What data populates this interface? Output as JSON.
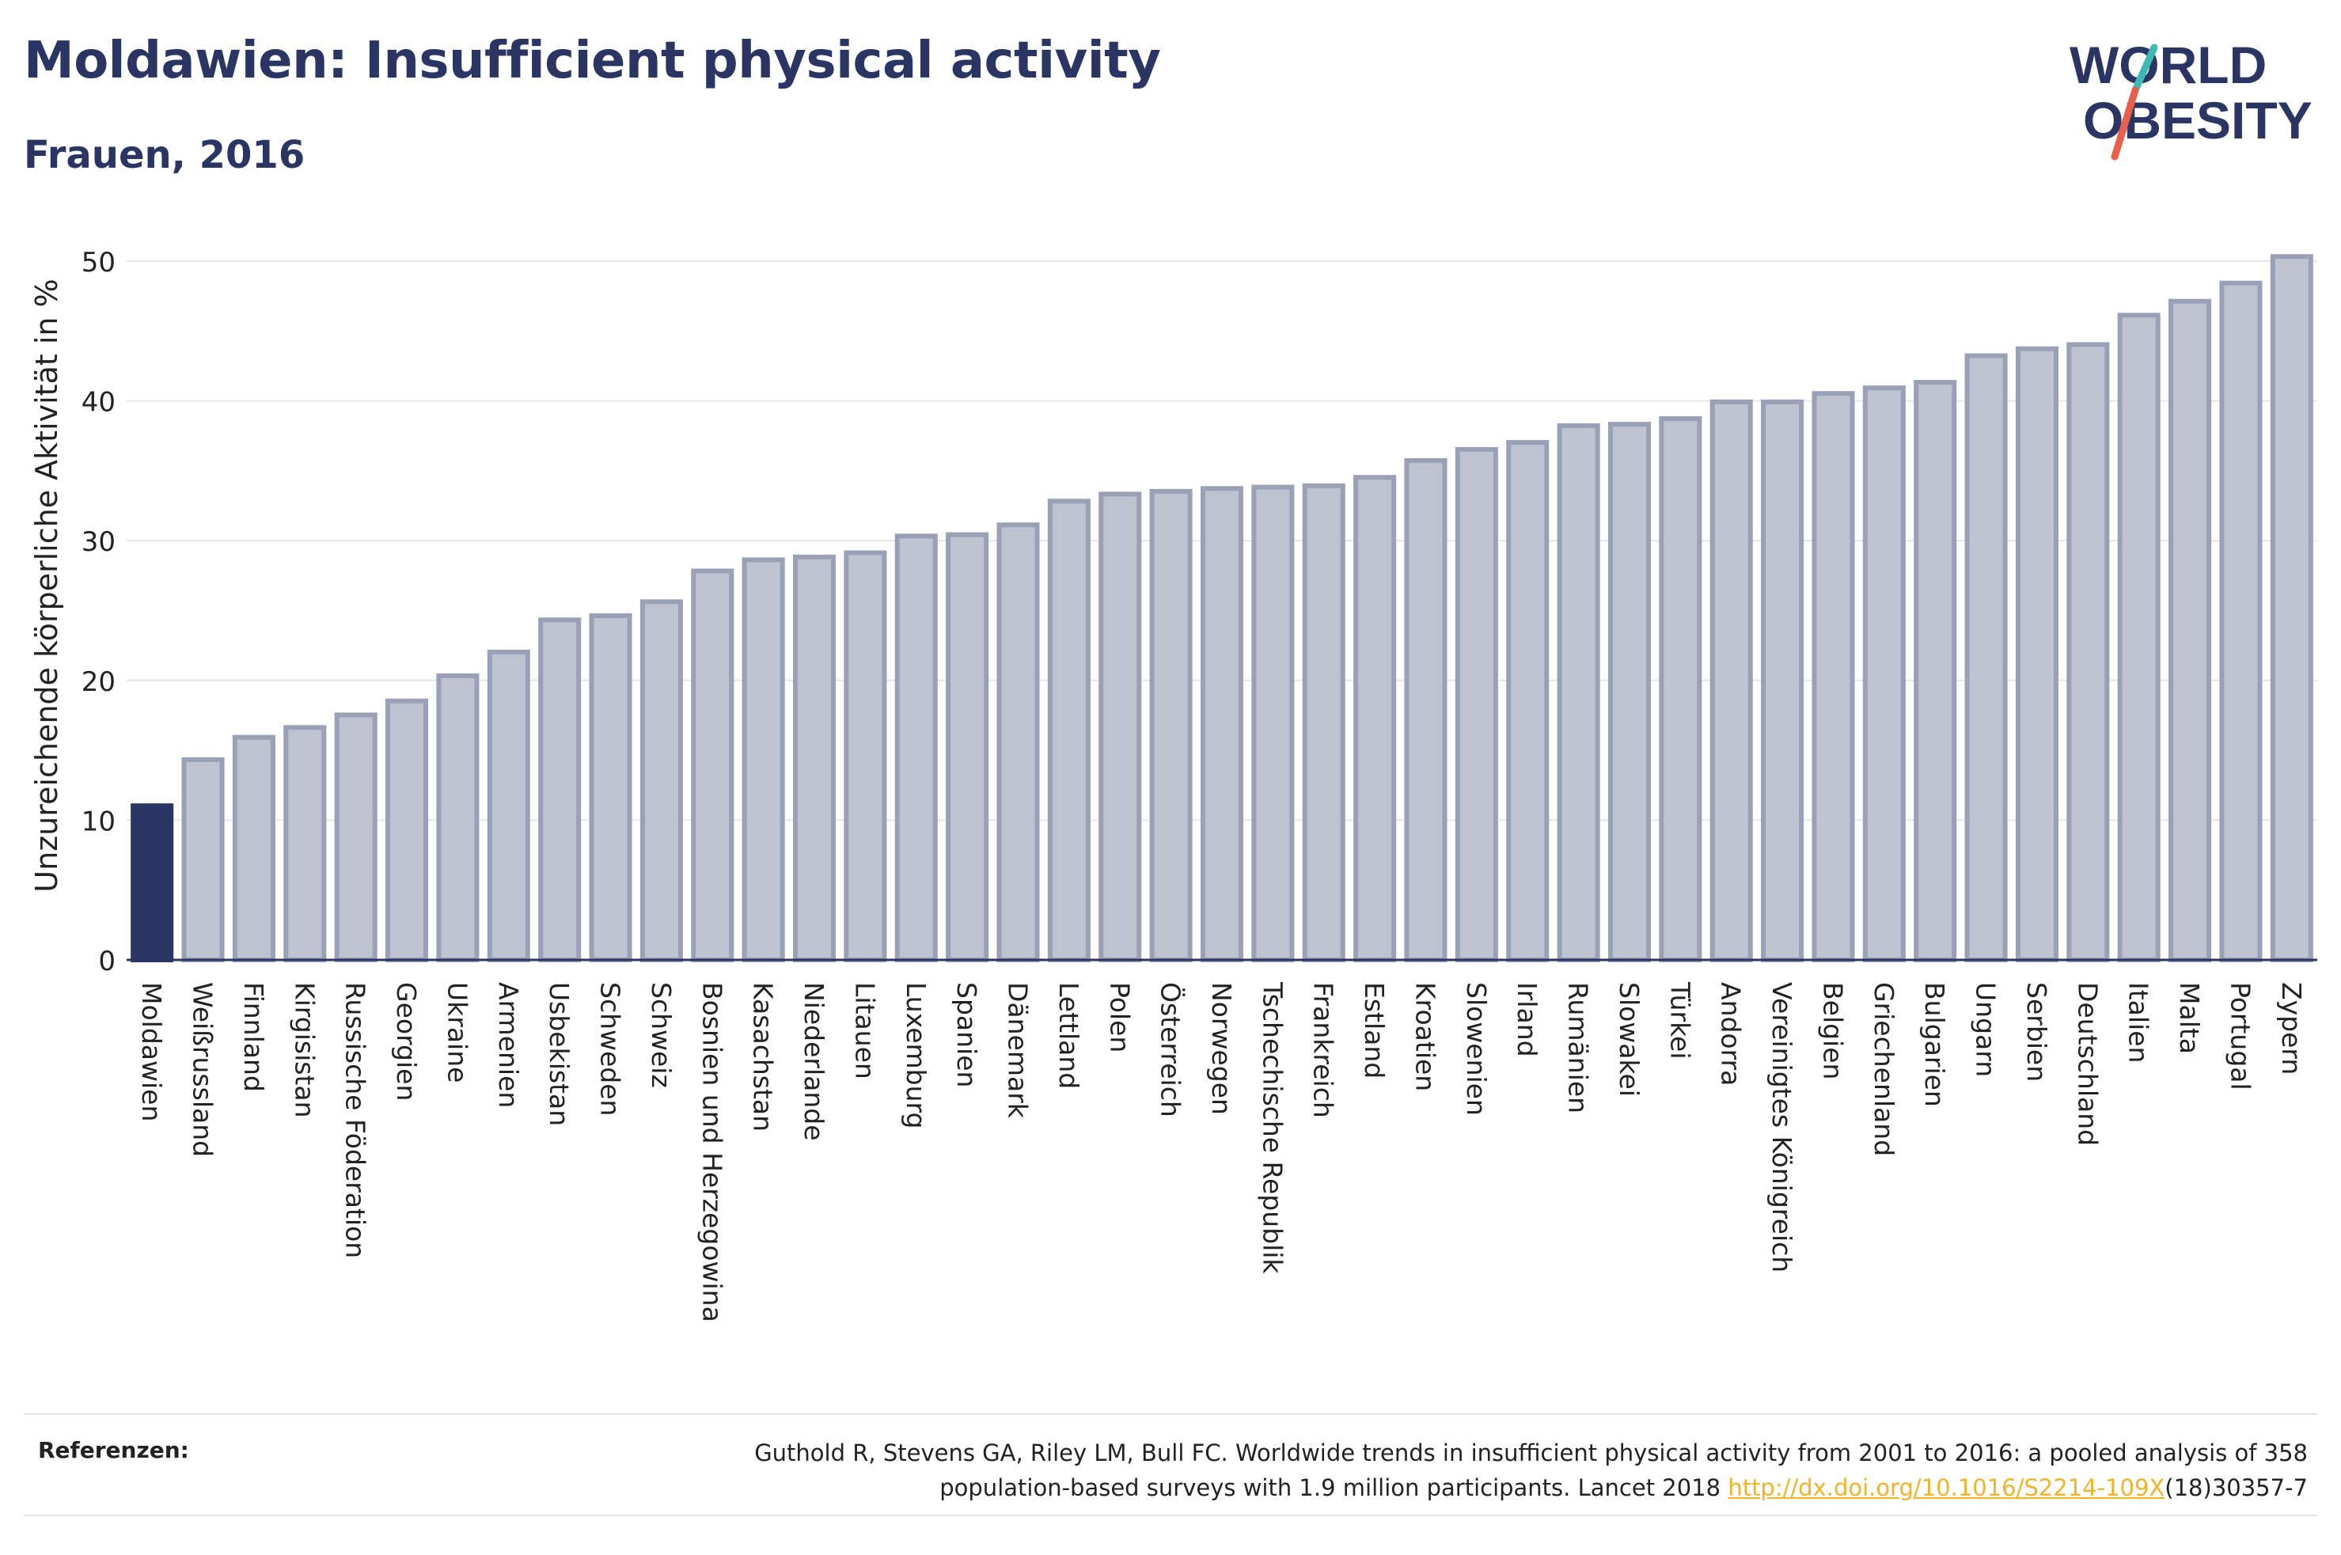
{
  "header": {
    "title": "Moldawien: Insufficient physical activity",
    "subtitle": "Frauen, 2016"
  },
  "logo": {
    "line1": "WORLD",
    "line2": "OBESITY",
    "slash_colors": [
      "#3fb9b3",
      "#e8604c"
    ]
  },
  "colors": {
    "highlight": "#2a3563",
    "bar_fill": "#bfc3d0",
    "bar_stroke": "#9aa0b6",
    "text": "#2a3563"
  },
  "chart_data": {
    "type": "bar",
    "ylabel": "Unzureichende körperliche Aktivität in %",
    "xlabel": "",
    "ylim": [
      0,
      50
    ],
    "yticks": [
      0,
      10,
      20,
      30,
      40,
      50
    ],
    "grid": true,
    "highlight_category": "Moldawien",
    "categories": [
      "Moldawien",
      "Weißrussland",
      "Finnland",
      "Kirgisistan",
      "Russische Föderation",
      "Georgien",
      "Ukraine",
      "Armenien",
      "Usbekistan",
      "Schweden",
      "Schweiz",
      "Bosnien und Herzegowina",
      "Kasachstan",
      "Niederlande",
      "Litauen",
      "Luxemburg",
      "Spanien",
      "Dänemark",
      "Lettland",
      "Polen",
      "Österreich",
      "Norwegen",
      "Tschechische Republik",
      "Frankreich",
      "Estland",
      "Kroatien",
      "Slowenien",
      "Irland",
      "Rumänien",
      "Slowakei",
      "Türkei",
      "Andorra",
      "Vereinigtes Königreich",
      "Belgien",
      "Griechenland",
      "Bulgarien",
      "Ungarn",
      "Serbien",
      "Deutschland",
      "Italien",
      "Malta",
      "Portugal",
      "Zypern"
    ],
    "values": [
      11.2,
      14.5,
      16.1,
      16.8,
      17.7,
      18.7,
      20.5,
      22.2,
      24.5,
      24.8,
      25.8,
      28.0,
      28.8,
      29.0,
      29.3,
      30.5,
      30.6,
      31.3,
      33.0,
      33.5,
      33.7,
      33.9,
      34.0,
      34.1,
      34.7,
      35.9,
      36.7,
      37.2,
      38.4,
      38.5,
      38.9,
      40.1,
      40.1,
      40.7,
      41.1,
      41.5,
      43.4,
      43.9,
      44.2,
      46.3,
      47.3,
      48.6,
      50.5
    ]
  },
  "references": {
    "label": "Referenzen:",
    "text_part1": "Guthold R, Stevens GA, Riley LM, Bull FC. Worldwide trends in insufficient physical activity from 2001 to 2016: a pooled analysis of 358",
    "text_part2": "population-based surveys with 1.9 million participants. Lancet 2018 ",
    "link": "http://dx.doi.org/10.1016/S2214-109X",
    "text_part3": "(18)30357-7"
  }
}
